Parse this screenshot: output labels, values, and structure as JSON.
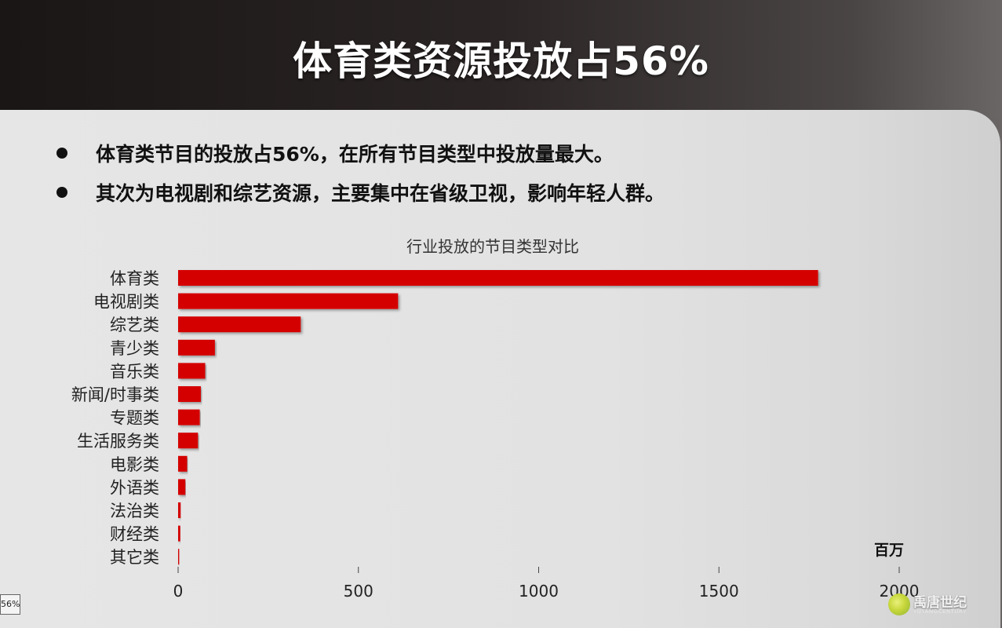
{
  "slide": {
    "title": "体育类资源投放占56%",
    "bullets": [
      "体育类节目的投放占56%，在所有节目类型中投放量最大。",
      "其次为电视剧和综艺资源，主要集中在省级卫视，影响年轻人群。"
    ],
    "corner_label": "56%",
    "logo_text": "禹唐世纪",
    "logo_sub": "YUTANGCENTURY"
  },
  "chart_data": {
    "type": "bar",
    "orientation": "horizontal",
    "title": "行业投放的节目类型对比",
    "unit_label": "百万",
    "categories": [
      "体育类",
      "电视剧类",
      "综艺类",
      "青少类",
      "音乐类",
      "新闻/时事类",
      "专题类",
      "生活服务类",
      "电影类",
      "外语类",
      "法治类",
      "财经类",
      "其它类"
    ],
    "values": [
      1775,
      610,
      340,
      102,
      75,
      63,
      60,
      55,
      25,
      20,
      7,
      6,
      3
    ],
    "xlim": [
      0,
      2000
    ],
    "xticks": [
      "0",
      "500",
      "1000",
      "1500",
      "2000"
    ],
    "colors": {
      "bar": "#d40000"
    },
    "grid": false
  }
}
